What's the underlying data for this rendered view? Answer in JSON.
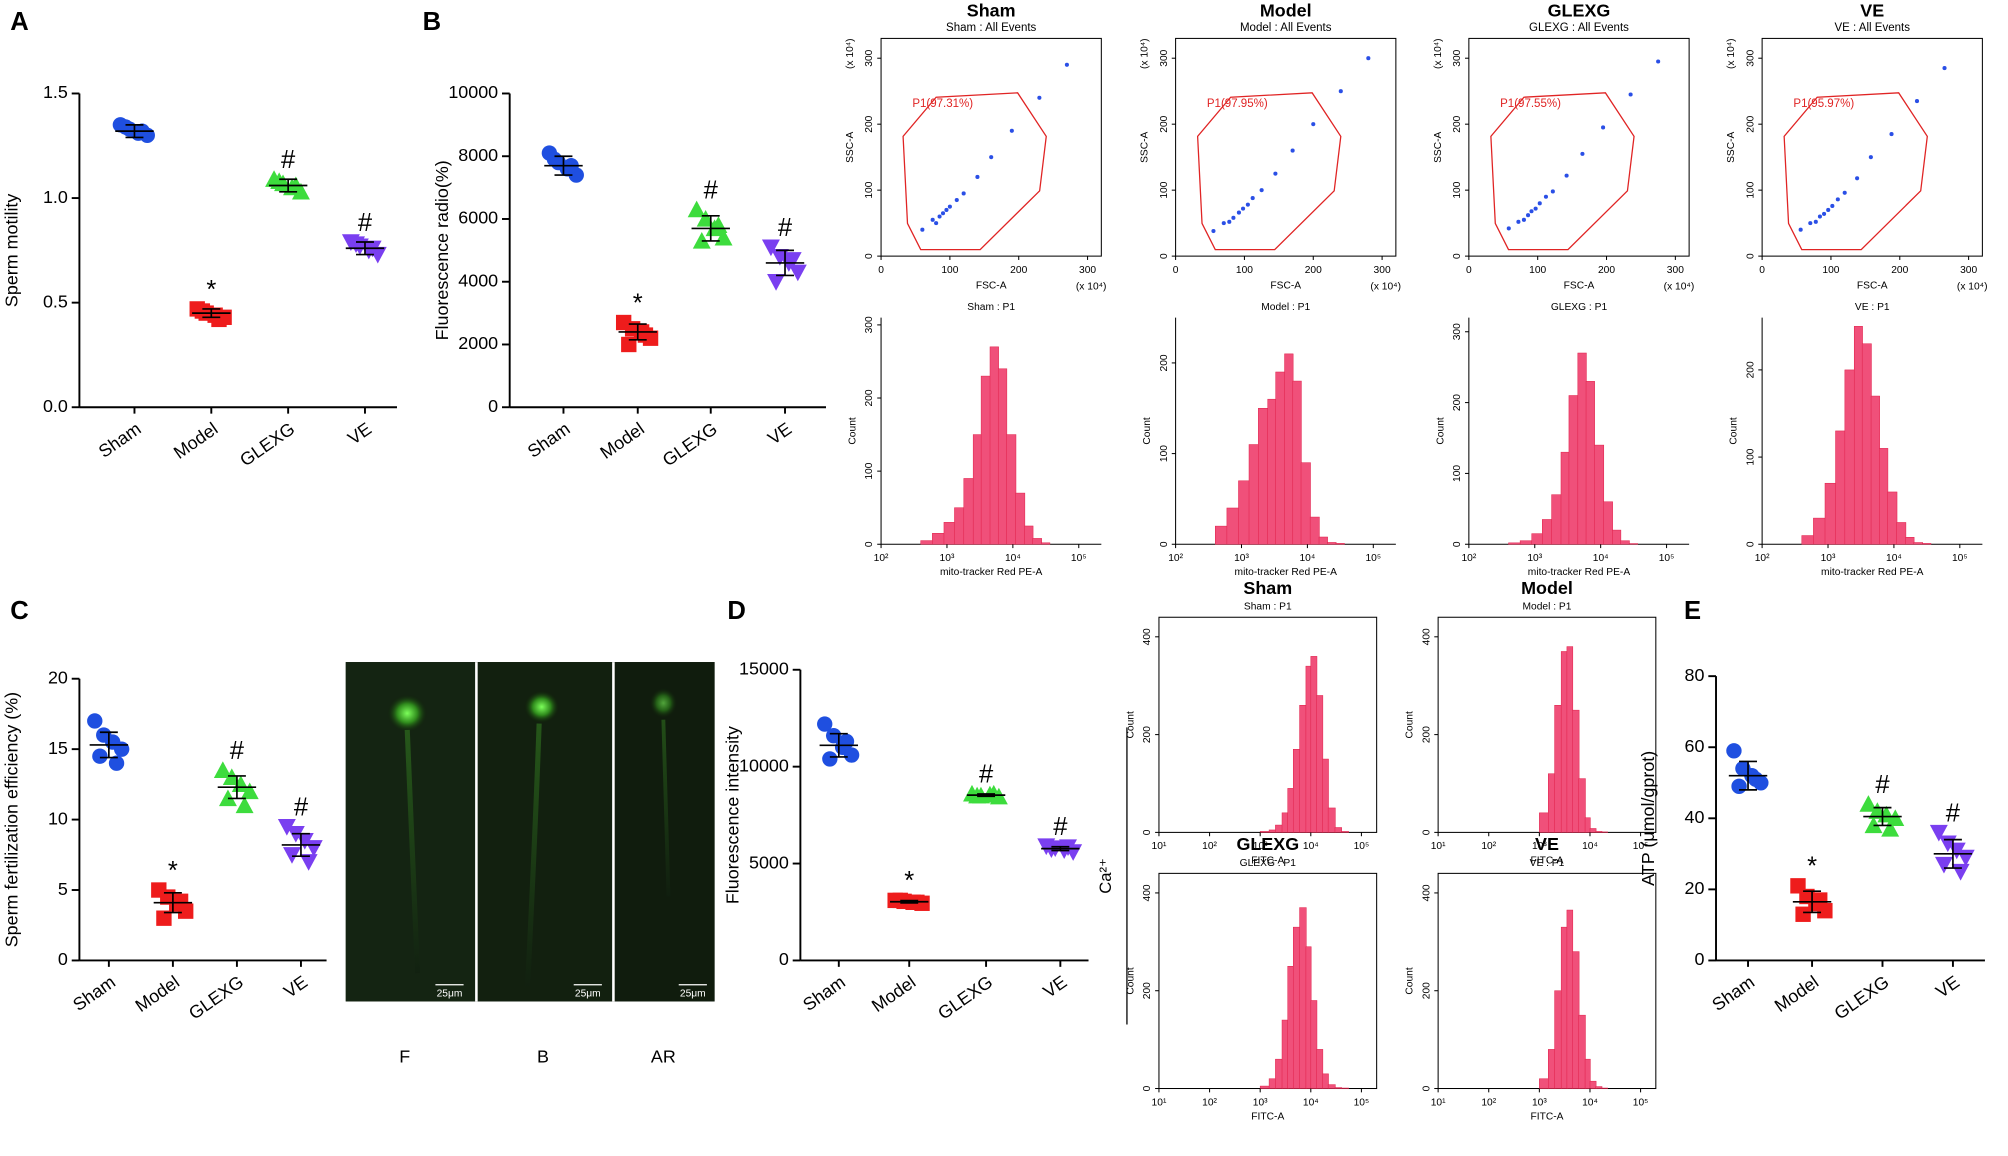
{
  "figure": {
    "ca_label": "Ca²⁺",
    "micrograph_labels": [
      "F",
      "B",
      "AR"
    ],
    "scale_bar": "25μm"
  },
  "chart_data": [
    {
      "type": "dot",
      "panel": "A",
      "ylabel": "Sperm motility",
      "categories": [
        "Sham",
        "Model",
        "GLEXG",
        "VE"
      ],
      "colors": [
        "#1f4fe0",
        "#ee1c1c",
        "#3ddc3d",
        "#7a3ff0"
      ],
      "markers": [
        "circle",
        "square",
        "triangle-up",
        "triangle-down"
      ],
      "points": [
        [
          1.35,
          1.33,
          1.31,
          1.3,
          1.34,
          1.32
        ],
        [
          0.47,
          0.45,
          0.44,
          0.43,
          0.46,
          0.42
        ],
        [
          1.09,
          1.07,
          1.05,
          1.03,
          1.08,
          1.06
        ],
        [
          0.79,
          0.77,
          0.75,
          0.73,
          0.78,
          0.76
        ]
      ],
      "means": [
        1.32,
        0.45,
        1.06,
        0.76
      ],
      "sds": [
        0.03,
        0.02,
        0.03,
        0.03
      ],
      "annotations": [
        null,
        "*",
        "#",
        "#"
      ],
      "ylim": [
        0,
        1.5
      ],
      "yticks": [
        {
          "value": 0,
          "label": "0.0"
        },
        0.5,
        {
          "value": 1,
          "label": "1.0"
        },
        1.5
      ]
    },
    {
      "type": "dot",
      "panel": "B",
      "ylabel": "Fluorescence radio(%)",
      "categories": [
        "Sham",
        "Model",
        "GLEXG",
        "VE"
      ],
      "colors": [
        "#1f4fe0",
        "#ee1c1c",
        "#3ddc3d",
        "#7a3ff0"
      ],
      "markers": [
        "circle",
        "square",
        "triangle-up",
        "triangle-down"
      ],
      "points": [
        [
          8100,
          7800,
          7600,
          7400,
          7900,
          7700
        ],
        [
          2700,
          2500,
          2400,
          2200,
          2000,
          2300
        ],
        [
          6300,
          6000,
          5700,
          5400,
          5300,
          5800
        ],
        [
          5100,
          4800,
          4600,
          4300,
          4000,
          4700
        ]
      ],
      "means": [
        7700,
        2400,
        5700,
        4600
      ],
      "sds": [
        300,
        250,
        400,
        400
      ],
      "annotations": [
        null,
        "*",
        "#",
        "#"
      ],
      "ylim": [
        0,
        10000
      ],
      "yticks": [
        0,
        2000,
        4000,
        6000,
        8000,
        10000
      ]
    },
    {
      "type": "scatter",
      "title": "Sham",
      "subtitle": "Sham : All Events",
      "gate_label": "P1(97.31%)",
      "xlabel": "FSC-A",
      "ylabel": "SSC-A",
      "axis_unit": "(x 10⁴)",
      "color": "#2a4fe6",
      "x": [
        60,
        75,
        80,
        85,
        90,
        95,
        100,
        110,
        120,
        140,
        160,
        190,
        230,
        270
      ],
      "y": [
        40,
        55,
        50,
        60,
        65,
        70,
        75,
        85,
        95,
        120,
        150,
        190,
        240,
        290
      ],
      "xlim": [
        0,
        320
      ],
      "ylim": [
        0,
        330
      ],
      "xticks": [
        0,
        100,
        200,
        300
      ],
      "yticks": [
        0,
        100,
        200,
        300
      ]
    },
    {
      "type": "scatter",
      "title": "Model",
      "subtitle": "Model : All Events",
      "gate_label": "P1(97.95%)",
      "xlabel": "FSC-A",
      "ylabel": "SSC-A",
      "axis_unit": "(x 10⁴)",
      "color": "#2a4fe6",
      "x": [
        55,
        70,
        78,
        84,
        92,
        98,
        105,
        112,
        125,
        145,
        170,
        200,
        240,
        280
      ],
      "y": [
        38,
        50,
        52,
        58,
        66,
        72,
        78,
        88,
        100,
        125,
        160,
        200,
        250,
        300
      ],
      "xlim": [
        0,
        320
      ],
      "ylim": [
        0,
        330
      ],
      "xticks": [
        0,
        100,
        200,
        300
      ],
      "yticks": [
        0,
        100,
        200,
        300
      ]
    },
    {
      "type": "scatter",
      "title": "GLEXG",
      "subtitle": "GLEXG : All Events",
      "gate_label": "P1(97.55%)",
      "xlabel": "FSC-A",
      "ylabel": "SSC-A",
      "axis_unit": "(x 10⁴)",
      "color": "#2a4fe6",
      "x": [
        58,
        72,
        80,
        86,
        91,
        97,
        103,
        112,
        122,
        142,
        165,
        195,
        235,
        275
      ],
      "y": [
        42,
        52,
        55,
        62,
        68,
        72,
        80,
        90,
        98,
        122,
        155,
        195,
        245,
        295
      ],
      "xlim": [
        0,
        320
      ],
      "ylim": [
        0,
        330
      ],
      "xticks": [
        0,
        100,
        200,
        300
      ],
      "yticks": [
        0,
        100,
        200,
        300
      ]
    },
    {
      "type": "scatter",
      "title": "VE",
      "subtitle": "VE : All Events",
      "gate_label": "P1(95.97%)",
      "xlabel": "FSC-A",
      "ylabel": "SSC-A",
      "axis_unit": "(x 10⁴)",
      "color": "#2a4fe6",
      "x": [
        56,
        70,
        78,
        84,
        90,
        96,
        102,
        110,
        120,
        138,
        158,
        188,
        225,
        265
      ],
      "y": [
        40,
        50,
        52,
        60,
        64,
        70,
        76,
        86,
        96,
        118,
        150,
        185,
        235,
        285
      ],
      "xlim": [
        0,
        320
      ],
      "ylim": [
        0,
        330
      ],
      "xticks": [
        0,
        100,
        200,
        300
      ],
      "yticks": [
        0,
        100,
        200,
        300
      ]
    },
    {
      "type": "histogram",
      "subtitle": "Sham : P1",
      "xlabel": "mito-tracker Red PE-A",
      "ylabel": "Count",
      "color": "#f0507a",
      "log_x": true,
      "frame": false,
      "bins": [
        400,
        600,
        900,
        1300,
        1800,
        2500,
        3300,
        4500,
        6000,
        8000,
        11000,
        15000,
        20000,
        27000,
        36000
      ],
      "counts": [
        5,
        15,
        30,
        50,
        90,
        150,
        230,
        270,
        240,
        150,
        70,
        25,
        8,
        2
      ],
      "xlim": [
        100,
        220000
      ],
      "ylim": [
        0,
        310
      ],
      "xticks": [
        {
          "value": 100,
          "label": "10²"
        },
        {
          "value": 1000,
          "label": "10³"
        },
        {
          "value": 10000,
          "label": "10⁴"
        },
        {
          "value": 100000,
          "label": "10⁵"
        }
      ],
      "yticks": [
        0,
        100,
        200,
        300
      ]
    },
    {
      "type": "histogram",
      "subtitle": "Model : P1",
      "xlabel": "mito-tracker Red PE-A",
      "ylabel": "Count",
      "color": "#f0507a",
      "log_x": true,
      "frame": false,
      "bins": [
        400,
        600,
        900,
        1300,
        1800,
        2500,
        3300,
        4500,
        6000,
        8000,
        11000,
        15000,
        20000,
        27000,
        36000
      ],
      "counts": [
        20,
        40,
        70,
        110,
        150,
        160,
        190,
        210,
        180,
        90,
        30,
        8,
        2,
        1
      ],
      "xlim": [
        100,
        220000
      ],
      "ylim": [
        0,
        250
      ],
      "xticks": [
        {
          "value": 100,
          "label": "10²"
        },
        {
          "value": 1000,
          "label": "10³"
        },
        {
          "value": 10000,
          "label": "10⁴"
        },
        {
          "value": 100000,
          "label": "10⁵"
        }
      ],
      "yticks": [
        0,
        100,
        200
      ]
    },
    {
      "type": "histogram",
      "subtitle": "GLEXG : P1",
      "xlabel": "mito-tracker Red PE-A",
      "ylabel": "Count",
      "color": "#f0507a",
      "log_x": true,
      "frame": false,
      "bins": [
        400,
        600,
        900,
        1300,
        1800,
        2500,
        3300,
        4500,
        6000,
        8000,
        11000,
        15000,
        20000,
        27000,
        36000
      ],
      "counts": [
        2,
        5,
        15,
        35,
        70,
        130,
        210,
        270,
        230,
        140,
        60,
        20,
        5,
        1
      ],
      "xlim": [
        100,
        220000
      ],
      "ylim": [
        0,
        320
      ],
      "xticks": [
        {
          "value": 100,
          "label": "10²"
        },
        {
          "value": 1000,
          "label": "10³"
        },
        {
          "value": 10000,
          "label": "10⁴"
        },
        {
          "value": 100000,
          "label": "10⁵"
        }
      ],
      "yticks": [
        0,
        100,
        200,
        300
      ]
    },
    {
      "type": "histogram",
      "subtitle": "VE : P1",
      "xlabel": "mito-tracker Red PE-A",
      "ylabel": "Count",
      "color": "#f0507a",
      "log_x": true,
      "frame": false,
      "bins": [
        400,
        600,
        900,
        1300,
        1800,
        2500,
        3300,
        4500,
        6000,
        8000,
        11000,
        15000,
        20000,
        27000,
        36000
      ],
      "counts": [
        10,
        30,
        70,
        130,
        200,
        250,
        230,
        170,
        110,
        60,
        25,
        8,
        2,
        1
      ],
      "xlim": [
        100,
        220000
      ],
      "ylim": [
        0,
        260
      ],
      "xticks": [
        {
          "value": 100,
          "label": "10²"
        },
        {
          "value": 1000,
          "label": "10³"
        },
        {
          "value": 10000,
          "label": "10⁴"
        },
        {
          "value": 100000,
          "label": "10⁵"
        }
      ],
      "yticks": [
        0,
        100,
        200
      ]
    },
    {
      "type": "dot",
      "panel": "C",
      "ylabel": "Sperm fertilization efficiency (%)",
      "categories": [
        "Sham",
        "Model",
        "GLEXG",
        "VE"
      ],
      "colors": [
        "#1f4fe0",
        "#ee1c1c",
        "#3ddc3d",
        "#7a3ff0"
      ],
      "markers": [
        "circle",
        "square",
        "triangle-up",
        "triangle-down"
      ],
      "points": [
        [
          17,
          16,
          15.5,
          15,
          14.5,
          14
        ],
        [
          5,
          4.5,
          4,
          3.5,
          3,
          4.2
        ],
        [
          13.5,
          13,
          12.5,
          12,
          11.5,
          11
        ],
        [
          9.5,
          9,
          8.5,
          8,
          7.5,
          7
        ]
      ],
      "means": [
        15.3,
        4.1,
        12.3,
        8.2
      ],
      "sds": [
        0.9,
        0.7,
        0.8,
        0.8
      ],
      "annotations": [
        null,
        "*",
        "#",
        "#"
      ],
      "ylim": [
        0,
        20
      ],
      "yticks": [
        0,
        5,
        10,
        15,
        20
      ]
    },
    {
      "type": "dot",
      "panel": "D",
      "ylabel": "Fluorescence intensity",
      "categories": [
        "Sham",
        "Model",
        "GLEXG",
        "VE"
      ],
      "colors": [
        "#1f4fe0",
        "#ee1c1c",
        "#3ddc3d",
        "#7a3ff0"
      ],
      "markers": [
        "circle",
        "square",
        "triangle-up",
        "triangle-down"
      ],
      "points": [
        [
          12200,
          11600,
          11000,
          10600,
          10400,
          11300
        ],
        [
          3100,
          3050,
          3000,
          2950,
          3100,
          3000
        ],
        [
          8600,
          8500,
          8550,
          8450,
          8500,
          8600
        ],
        [
          5900,
          5800,
          5700,
          5600,
          5750,
          5850
        ]
      ],
      "means": [
        11100,
        3030,
        8530,
        5770
      ],
      "sds": [
        600,
        60,
        60,
        100
      ],
      "annotations": [
        null,
        "*",
        "#",
        "#"
      ],
      "ylim": [
        0,
        15000
      ],
      "yticks": [
        0,
        5000,
        10000,
        15000
      ]
    },
    {
      "type": "histogram",
      "title": "Sham",
      "subtitle": "Sham : P1",
      "xlabel": "FITC-A",
      "ylabel": "Count",
      "color": "#f0507a",
      "log_x": true,
      "frame": true,
      "bins": [
        1000,
        1500,
        2000,
        2700,
        3500,
        4500,
        6000,
        8000,
        10000,
        13000,
        17000,
        22000,
        30000,
        40000,
        55000
      ],
      "counts": [
        2,
        5,
        15,
        40,
        90,
        170,
        260,
        340,
        360,
        280,
        150,
        50,
        10,
        2
      ],
      "xlim": [
        10,
        200000
      ],
      "ylim": [
        0,
        440
      ],
      "xticks": [
        {
          "value": 10,
          "label": "10¹"
        },
        {
          "value": 100,
          "label": "10²"
        },
        {
          "value": 1000,
          "label": "10³"
        },
        {
          "value": 10000,
          "label": "10⁴"
        },
        {
          "value": 100000,
          "label": "10⁵"
        }
      ],
      "yticks": [
        0,
        200,
        400
      ]
    },
    {
      "type": "histogram",
      "title": "Model",
      "subtitle": "Model : P1",
      "xlabel": "FITC-A",
      "ylabel": "Count",
      "color": "#f0507a",
      "log_x": true,
      "frame": true,
      "bins": [
        1000,
        1500,
        2000,
        2700,
        3500,
        4500,
        6000,
        8000,
        10000,
        13000,
        17000,
        22000,
        30000,
        40000,
        55000
      ],
      "counts": [
        40,
        120,
        260,
        370,
        380,
        250,
        110,
        30,
        8,
        2,
        1,
        0,
        0,
        0
      ],
      "xlim": [
        10,
        200000
      ],
      "ylim": [
        0,
        440
      ],
      "xticks": [
        {
          "value": 10,
          "label": "10¹"
        },
        {
          "value": 100,
          "label": "10²"
        },
        {
          "value": 1000,
          "label": "10³"
        },
        {
          "value": 10000,
          "label": "10⁴"
        },
        {
          "value": 100000,
          "label": "10⁵"
        }
      ],
      "yticks": [
        0,
        200,
        400
      ]
    },
    {
      "type": "histogram",
      "title": "GLEXG",
      "subtitle": "GLEXG : P1",
      "xlabel": "FITC-A",
      "ylabel": "Count",
      "color": "#f0507a",
      "log_x": true,
      "frame": true,
      "bins": [
        1000,
        1500,
        2000,
        2700,
        3500,
        4500,
        6000,
        8000,
        10000,
        13000,
        17000,
        22000,
        30000,
        40000,
        55000
      ],
      "counts": [
        5,
        20,
        60,
        140,
        250,
        330,
        370,
        290,
        180,
        80,
        30,
        8,
        2,
        1
      ],
      "xlim": [
        10,
        200000
      ],
      "ylim": [
        0,
        440
      ],
      "xticks": [
        {
          "value": 10,
          "label": "10¹"
        },
        {
          "value": 100,
          "label": "10²"
        },
        {
          "value": 1000,
          "label": "10³"
        },
        {
          "value": 10000,
          "label": "10⁴"
        },
        {
          "value": 100000,
          "label": "10⁵"
        }
      ],
      "yticks": [
        0,
        200,
        400
      ]
    },
    {
      "type": "histogram",
      "title": "VE",
      "subtitle": "VE : P1",
      "xlabel": "FITC-A",
      "ylabel": "Count",
      "color": "#f0507a",
      "log_x": true,
      "frame": true,
      "bins": [
        1000,
        1500,
        2000,
        2700,
        3500,
        4500,
        6000,
        8000,
        10000,
        13000,
        17000,
        22000,
        30000,
        40000,
        55000
      ],
      "counts": [
        20,
        80,
        200,
        330,
        365,
        280,
        150,
        60,
        15,
        4,
        1,
        0,
        0,
        0
      ],
      "xlim": [
        10,
        200000
      ],
      "ylim": [
        0,
        440
      ],
      "xticks": [
        {
          "value": 10,
          "label": "10¹"
        },
        {
          "value": 100,
          "label": "10²"
        },
        {
          "value": 1000,
          "label": "10³"
        },
        {
          "value": 10000,
          "label": "10⁴"
        },
        {
          "value": 100000,
          "label": "10⁵"
        }
      ],
      "yticks": [
        0,
        200,
        400
      ]
    },
    {
      "type": "dot",
      "panel": "E",
      "ylabel": "ATP (μmol/gprot)",
      "categories": [
        "Sham",
        "Model",
        "GLEXG",
        "VE"
      ],
      "colors": [
        "#1f4fe0",
        "#ee1c1c",
        "#3ddc3d",
        "#7a3ff0"
      ],
      "markers": [
        "circle",
        "square",
        "triangle-up",
        "triangle-down"
      ],
      "points": [
        [
          59,
          54,
          52,
          50,
          49,
          51
        ],
        [
          21,
          18,
          16,
          14,
          13,
          17
        ],
        [
          44,
          42,
          41,
          40,
          38,
          37
        ],
        [
          36,
          33,
          31,
          29,
          27,
          25
        ]
      ],
      "means": [
        52,
        16.5,
        40.5,
        30
      ],
      "sds": [
        4,
        3,
        2.5,
        4
      ],
      "annotations": [
        null,
        "*",
        "#",
        "#"
      ],
      "ylim": [
        0,
        80
      ],
      "yticks": [
        0,
        20,
        40,
        60,
        80
      ]
    }
  ]
}
